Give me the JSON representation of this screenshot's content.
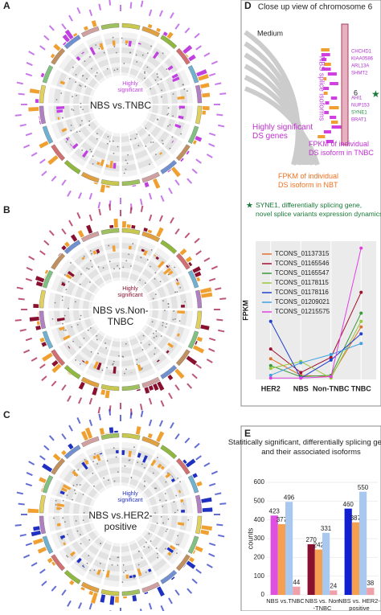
{
  "panels": {
    "a": {
      "label": "A",
      "center_title": "NBS vs.TNBC",
      "note": "Highly\nsignificant"
    },
    "b": {
      "label": "B",
      "center_title": "NBS vs.Non-\nTNBC",
      "note": "Highly\nsignificant"
    },
    "c": {
      "label": "C",
      "center_title": "NBS vs.HER2-\npositive",
      "note": "Highly\nsignificant"
    },
    "d": {
      "label": "D",
      "title": "Close up view of chromosome 6",
      "medium": "Medium",
      "chromosome": "6",
      "ring_label": "NBS splice isoforms",
      "genes": [
        "CHCHD1",
        "KIAA0586",
        "ARL13A",
        "SHMT2",
        "AHI1",
        "NUP153",
        "SYNE1",
        "BRAT1"
      ],
      "annot_genes": "Highly significant\nDS genes",
      "annot_tnbc": "FPKM of individual\nDS isoform in TNBC",
      "annot_nbt": "FPKM of individual\nDS isoform in NBT",
      "star_note": "SYNE1, differentially splicing gene,\nnovel splice variants expression dynamics"
    },
    "e": {
      "label": "E"
    }
  },
  "chart_data": [
    {
      "type": "line",
      "ylabel": "FPKM",
      "categories": [
        "HER2",
        "NBS",
        "Non-TNBC",
        "TNBC"
      ],
      "ylim": [
        0,
        10
      ],
      "series": [
        {
          "name": "TCONS_01137315",
          "color": "#e07030",
          "values": [
            1.5,
            0.3,
            0.2,
            3.8
          ]
        },
        {
          "name": "TCONS_01165546",
          "color": "#a01030",
          "values": [
            2.2,
            0.5,
            1.6,
            6.3
          ]
        },
        {
          "name": "TCONS_01165547",
          "color": "#3a9a3a",
          "values": [
            1.0,
            0.2,
            0.3,
            4.8
          ]
        },
        {
          "name": "TCONS_01178115",
          "color": "#9ac83a",
          "values": [
            0.8,
            1.3,
            0.1,
            4.2
          ]
        },
        {
          "name": "TCONS_01178116",
          "color": "#2040d0",
          "values": [
            4.2,
            0.1,
            1.4,
            3.3
          ]
        },
        {
          "name": "TCONS_01209021",
          "color": "#40a0e0",
          "values": [
            0.3,
            1.2,
            1.8,
            2.6
          ]
        },
        {
          "name": "TCONS_01215575",
          "color": "#e040e0",
          "values": [
            0.1,
            0.1,
            0.2,
            9.5
          ]
        }
      ]
    },
    {
      "type": "bar",
      "title": "Statitically significant, differentially splicing genes and their associated  isoforms",
      "ylabel": "counts",
      "categories": [
        "NBS vs.TNBC",
        "NBS vs. Non\n-TNBC",
        "NBS vs. HER2-\npositive"
      ],
      "ylim": [
        0,
        600
      ],
      "yticks": [
        0,
        100,
        200,
        300,
        400,
        500,
        600
      ],
      "series": [
        {
          "colors": [
            "#e050e0",
            "#8a1030",
            "#1020d0"
          ],
          "values": [
            423,
            270,
            460
          ]
        },
        {
          "color": "#f5a050",
          "values": [
            377,
            242,
            387
          ]
        },
        {
          "color": "#a8c8f0",
          "values": [
            496,
            331,
            550
          ]
        },
        {
          "color": "#f0a0a8",
          "values": [
            44,
            24,
            38
          ]
        }
      ]
    }
  ]
}
